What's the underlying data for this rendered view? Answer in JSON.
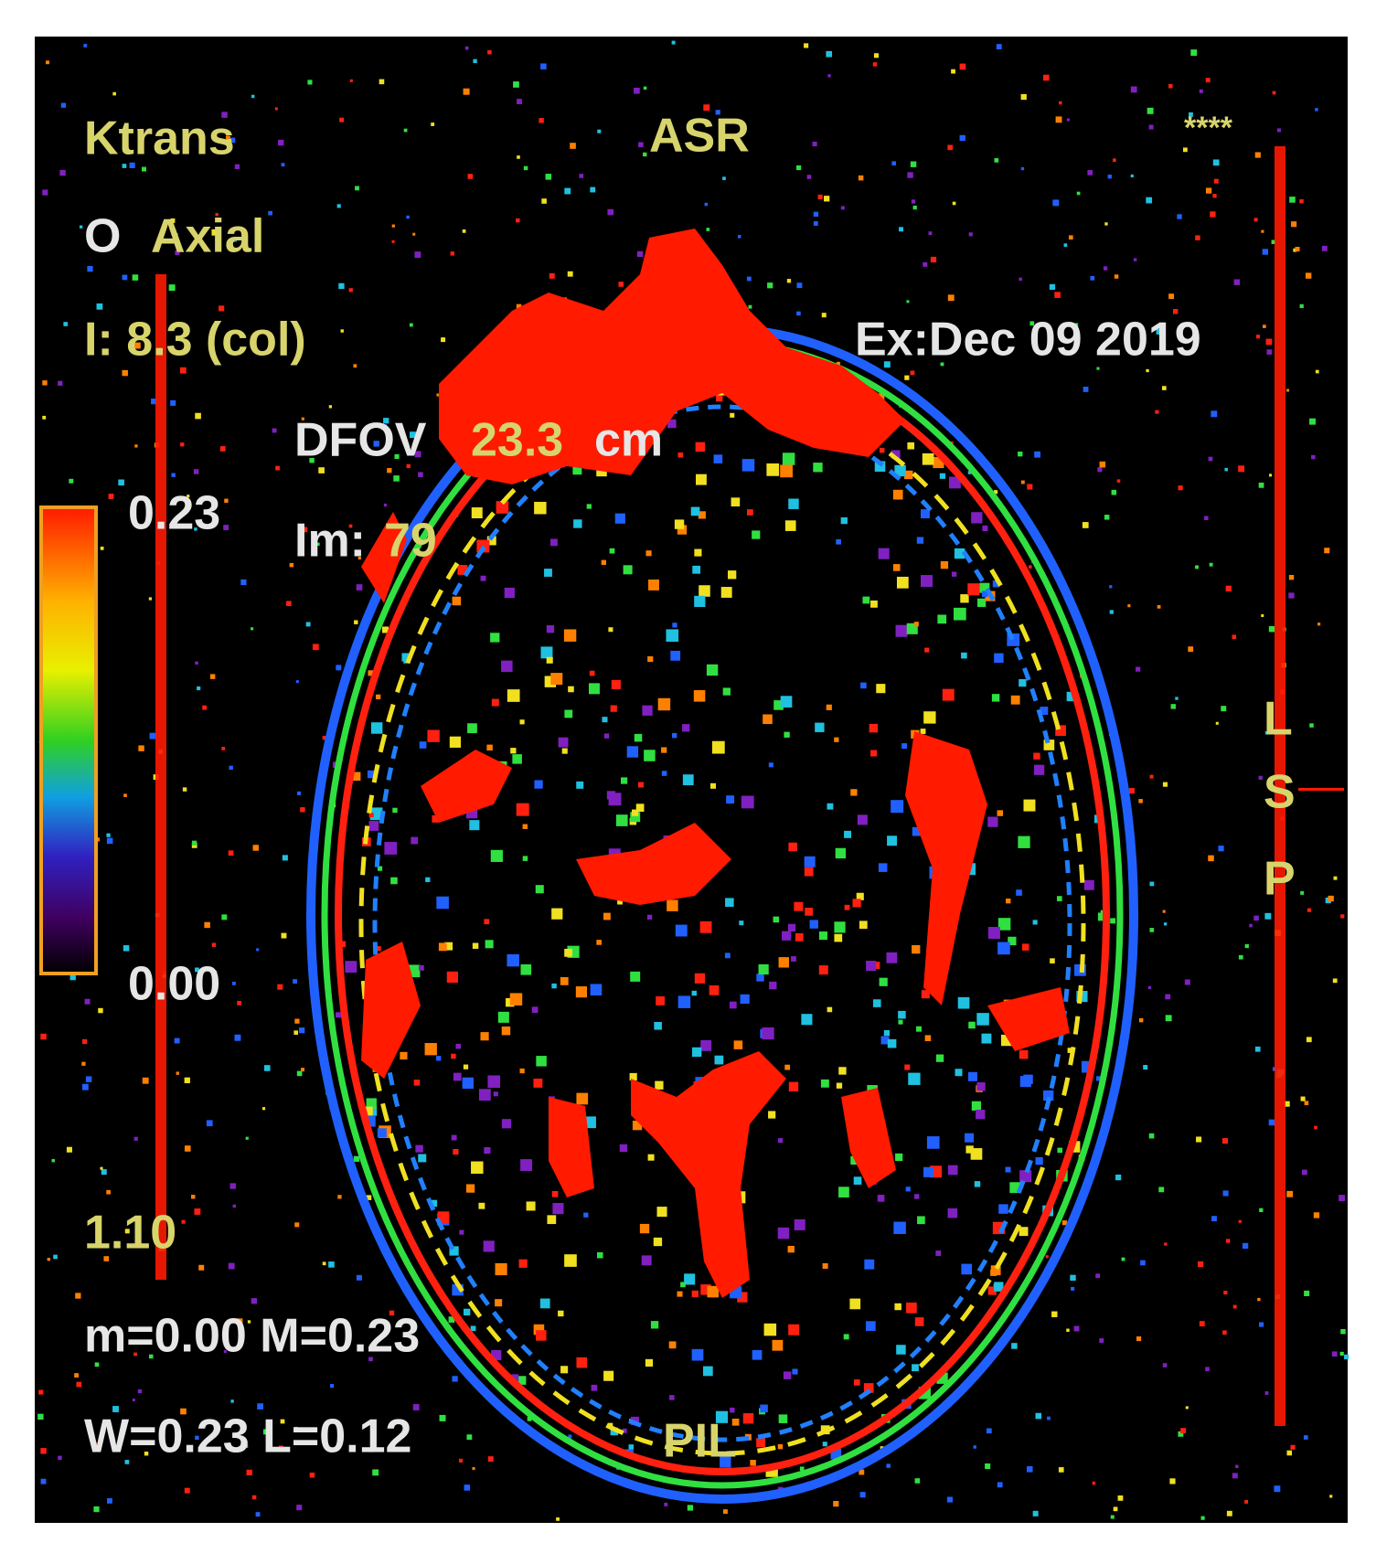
{
  "overlay": {
    "top_left": {
      "map": "Ktrans",
      "orientation_mark": "O",
      "plane": "Axial",
      "location": "I: 8.3 (col)"
    },
    "top_center": "ASR",
    "top_right": {
      "stars": "****",
      "exam_date": "Ex:Dec 09 2019"
    },
    "field_of_view": {
      "label": "DFOV",
      "value": "23.3",
      "unit": "cm"
    },
    "image_number": {
      "label": "Im:",
      "value": "79"
    },
    "color_bar": {
      "max_label": "0.23",
      "min_label": "0.00"
    },
    "bottom_left": {
      "scale": "1.10",
      "range": "m=0.00 M=0.23",
      "window_level": "W=0.23 L=0.12"
    },
    "bottom_center": "PIL",
    "right_side": [
      "L",
      "S",
      "P"
    ]
  }
}
